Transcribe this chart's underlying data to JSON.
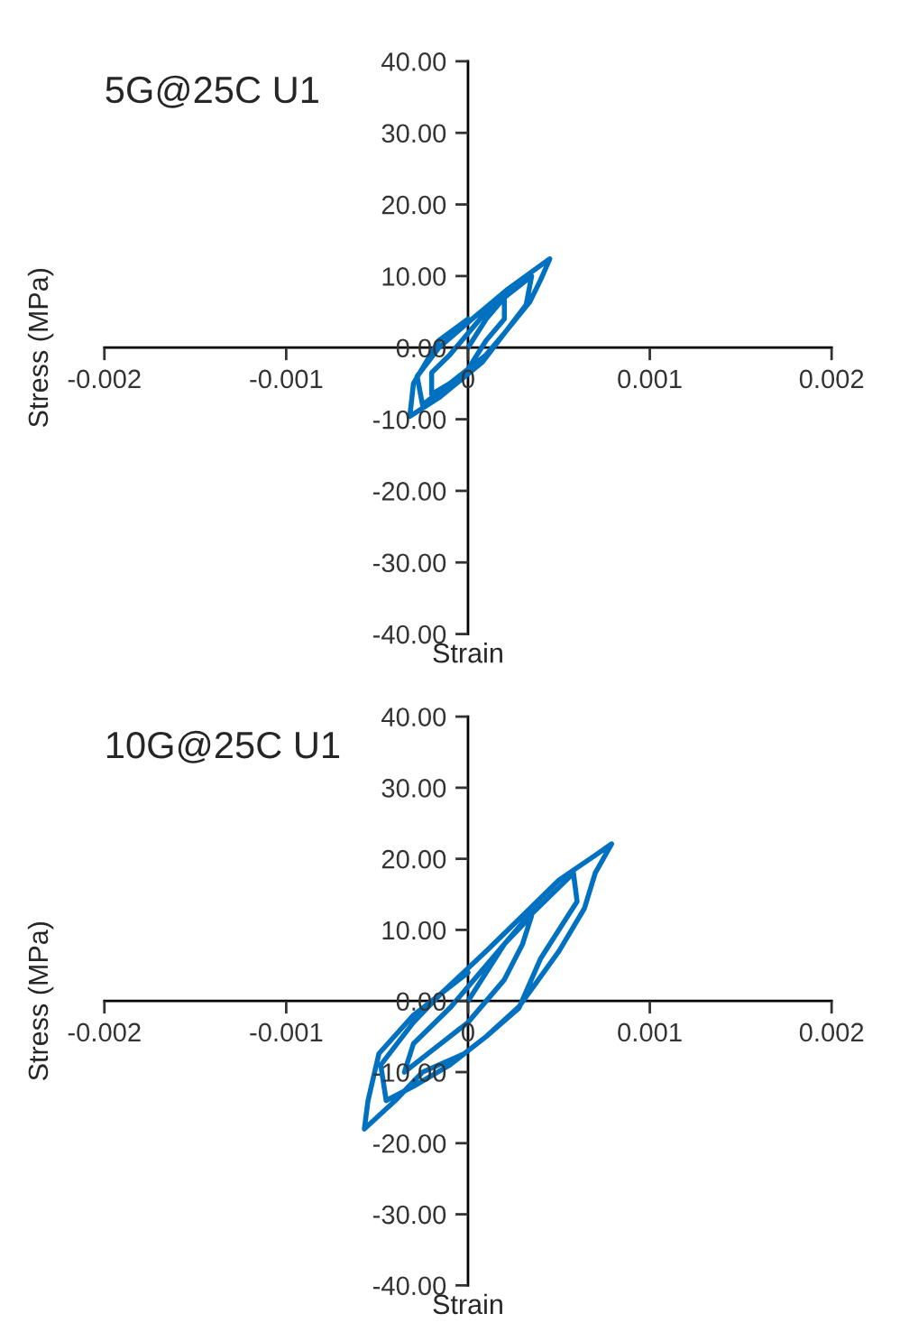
{
  "chart_data": [
    {
      "type": "line",
      "title": "5G@25C U1",
      "xlabel": "Strain",
      "ylabel": "Stress (MPa)",
      "xlim": [
        -0.002,
        0.002
      ],
      "xticks": [
        -0.002,
        -0.001,
        0,
        0.001,
        0.002
      ],
      "ylim": [
        -40,
        40
      ],
      "yticks": [
        {
          "value": -40,
          "label": "-40.00"
        },
        {
          "value": -30,
          "label": "-30.00"
        },
        {
          "value": -20,
          "label": "-20.00"
        },
        {
          "value": -10,
          "label": "-10.00"
        },
        {
          "value": 0,
          "label": "0.00"
        },
        {
          "value": 10,
          "label": "10.00"
        },
        {
          "value": 20,
          "label": "20.00"
        },
        {
          "value": 30,
          "label": "30.00"
        },
        {
          "value": 40,
          "label": "40.00"
        }
      ],
      "grid": false,
      "series": [
        {
          "color": "#0070c0",
          "x": [
            0,
            0.0001,
            0.0002,
            0.0002,
            0.0001,
            0,
            -0.0001,
            -0.0002,
            -0.0002,
            -0.0001,
            0,
            0.0001,
            0.0003,
            0.00035,
            0.00032,
            0.0002,
            0.0001,
            -0.0001,
            -0.00025,
            -0.00028,
            -0.00016,
            0,
            0.00021,
            0.0004,
            0.00045,
            0.0004,
            0.00034,
            0.0002,
            8e-05,
            -0.00016,
            -0.00032,
            -0.0003,
            -0.00016,
            0
          ],
          "values": [
            0,
            4,
            7,
            4,
            1,
            -3,
            -5,
            -6.5,
            -3.5,
            -1,
            2,
            5,
            9,
            10,
            6,
            2,
            -1,
            -5,
            -8,
            -4,
            0,
            3.5,
            8,
            11.5,
            12.4,
            9.5,
            6.4,
            2,
            -2,
            -7,
            -9.6,
            -5,
            1,
            4
          ]
        }
      ]
    },
    {
      "type": "line",
      "title": "10G@25C U1",
      "xlabel": "Strain",
      "ylabel": "Stress (MPa)",
      "xlim": [
        -0.002,
        0.002
      ],
      "xticks": [
        -0.002,
        -0.001,
        0,
        0.001,
        0.002
      ],
      "ylim": [
        -40,
        40
      ],
      "yticks": [
        {
          "value": -40,
          "label": "-40.00"
        },
        {
          "value": -30,
          "label": "-30.00"
        },
        {
          "value": -20,
          "label": "-20.00"
        },
        {
          "value": -10,
          "label": "-10.00"
        },
        {
          "value": 0,
          "label": "0.00"
        },
        {
          "value": 10,
          "label": "10.00"
        },
        {
          "value": 20,
          "label": "20.00"
        },
        {
          "value": 30,
          "label": "30.00"
        },
        {
          "value": 40,
          "label": "40.00"
        }
      ],
      "grid": false,
      "series": [
        {
          "color": "#0070c0",
          "x": [
            0,
            0.0002,
            0.00035,
            0.0003,
            0.0002,
            0,
            -0.0002,
            -0.00035,
            -0.0003,
            -0.0001,
            0.0001,
            0.0003,
            0.0005,
            0.00058,
            0.0006,
            0.0004,
            0.00028,
            0.0001,
            -0.0001,
            -0.0003,
            -0.00045,
            -0.00048,
            -0.0003,
            -0.00015,
            0.0001,
            0.0003,
            0.0005,
            0.0007,
            0.00079,
            0.0007,
            0.00064,
            0.0005,
            0.00028,
            0.0001,
            -2e-05,
            -0.00025,
            -0.0004,
            -0.00057,
            -0.00055,
            -0.00049,
            -0.0003,
            -0.00015,
            0
          ],
          "values": [
            0,
            8,
            12,
            8,
            3,
            -3,
            -7,
            -10,
            -6,
            -1,
            5,
            11,
            16,
            18,
            14,
            6,
            -1,
            -5,
            -9,
            -12,
            -14,
            -9,
            -3,
            1,
            7,
            12,
            17,
            20.5,
            22.1,
            18,
            13,
            7,
            -0.8,
            -5,
            -7.4,
            -10,
            -14,
            -18,
            -14,
            -7.4,
            -2,
            1,
            4
          ]
        }
      ]
    }
  ]
}
